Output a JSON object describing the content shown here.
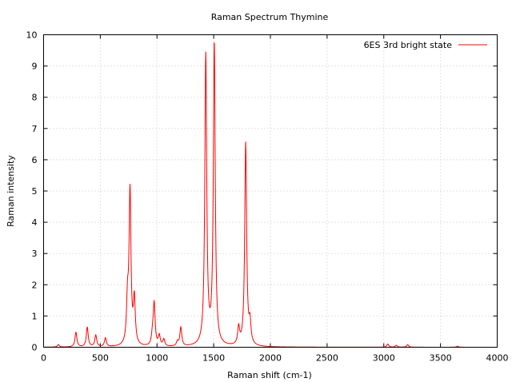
{
  "chart_data": {
    "type": "line",
    "title": "Raman Spectrum Thymine",
    "xlabel": "Raman shift (cm-1)",
    "ylabel": "Raman intensity",
    "xlim": [
      0,
      4000
    ],
    "ylim": [
      0,
      10
    ],
    "xticks": [
      0,
      500,
      1000,
      1500,
      2000,
      2500,
      3000,
      3500,
      4000
    ],
    "yticks": [
      0,
      1,
      2,
      3,
      4,
      5,
      6,
      7,
      8,
      9,
      10
    ],
    "grid": true,
    "legend_position": "top-right",
    "line_width_cm1": 10,
    "series": [
      {
        "name": "6ES 3rd bright state",
        "color": "#ff0000",
        "peaks": [
          {
            "x": 130,
            "y": 0.08
          },
          {
            "x": 285,
            "y": 0.47
          },
          {
            "x": 385,
            "y": 0.63
          },
          {
            "x": 460,
            "y": 0.37
          },
          {
            "x": 545,
            "y": 0.28
          },
          {
            "x": 740,
            "y": 1.3
          },
          {
            "x": 762,
            "y": 4.9
          },
          {
            "x": 800,
            "y": 1.45
          },
          {
            "x": 960,
            "y": 0.3
          },
          {
            "x": 975,
            "y": 1.35
          },
          {
            "x": 1020,
            "y": 0.33
          },
          {
            "x": 1060,
            "y": 0.22
          },
          {
            "x": 1180,
            "y": 0.14
          },
          {
            "x": 1210,
            "y": 0.6
          },
          {
            "x": 1430,
            "y": 9.28
          },
          {
            "x": 1505,
            "y": 9.65
          },
          {
            "x": 1720,
            "y": 0.55
          },
          {
            "x": 1782,
            "y": 6.5
          },
          {
            "x": 1820,
            "y": 0.65
          },
          {
            "x": 3035,
            "y": 0.1
          },
          {
            "x": 3110,
            "y": 0.06
          },
          {
            "x": 3210,
            "y": 0.08
          },
          {
            "x": 3650,
            "y": 0.03
          }
        ]
      }
    ]
  }
}
